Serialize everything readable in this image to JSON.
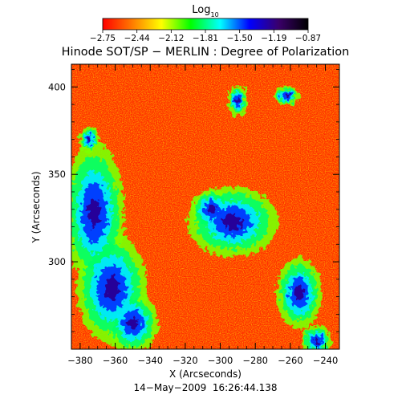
{
  "colorbar": {
    "title": "Log",
    "title_subscript": "10",
    "tick_labels": [
      "−2.75",
      "−2.44",
      "−2.12",
      "−1.81",
      "−1.50",
      "−1.19",
      "−0.87"
    ],
    "colormap": [
      "#ff0000",
      "#ff7a00",
      "#ffff00",
      "#00ff00",
      "#00ffff",
      "#0000ff",
      "#3a006a",
      "#000000"
    ]
  },
  "footer": {
    "timestamp": "14−May−2009  16:26:44.138"
  },
  "chart_data": {
    "type": "heatmap",
    "title": "Hinode SOT/SP − MERLIN : Degree of Polarization",
    "xlabel": "X (Arcseconds)",
    "ylabel": "Y (Arcseconds)",
    "xlim": [
      -385,
      -232
    ],
    "ylim": [
      250,
      413
    ],
    "x_ticks": [
      -380,
      -360,
      -340,
      -320,
      -300,
      -280,
      -260,
      -240
    ],
    "x_tick_labels": [
      "−380",
      "−360",
      "−340",
      "−320",
      "−300",
      "−280",
      "−260",
      "−240"
    ],
    "y_ticks": [
      300,
      350,
      400
    ],
    "y_tick_labels": [
      "300",
      "350",
      "400"
    ],
    "value_range": [
      -2.75,
      -0.87
    ],
    "value_label": "Log10 degree of polarization",
    "high_polarization_regions": [
      {
        "x": -372,
        "y": 328,
        "rx": 12,
        "ry": 28
      },
      {
        "x": -362,
        "y": 285,
        "rx": 14,
        "ry": 22
      },
      {
        "x": -350,
        "y": 265,
        "rx": 10,
        "ry": 12
      },
      {
        "x": -293,
        "y": 323,
        "rx": 18,
        "ry": 14
      },
      {
        "x": -305,
        "y": 330,
        "rx": 8,
        "ry": 8
      },
      {
        "x": -255,
        "y": 282,
        "rx": 9,
        "ry": 14
      },
      {
        "x": -290,
        "y": 392,
        "rx": 4,
        "ry": 6
      },
      {
        "x": -262,
        "y": 395,
        "rx": 5,
        "ry": 4
      },
      {
        "x": -375,
        "y": 370,
        "rx": 4,
        "ry": 5
      },
      {
        "x": -245,
        "y": 255,
        "rx": 6,
        "ry": 6
      }
    ]
  }
}
